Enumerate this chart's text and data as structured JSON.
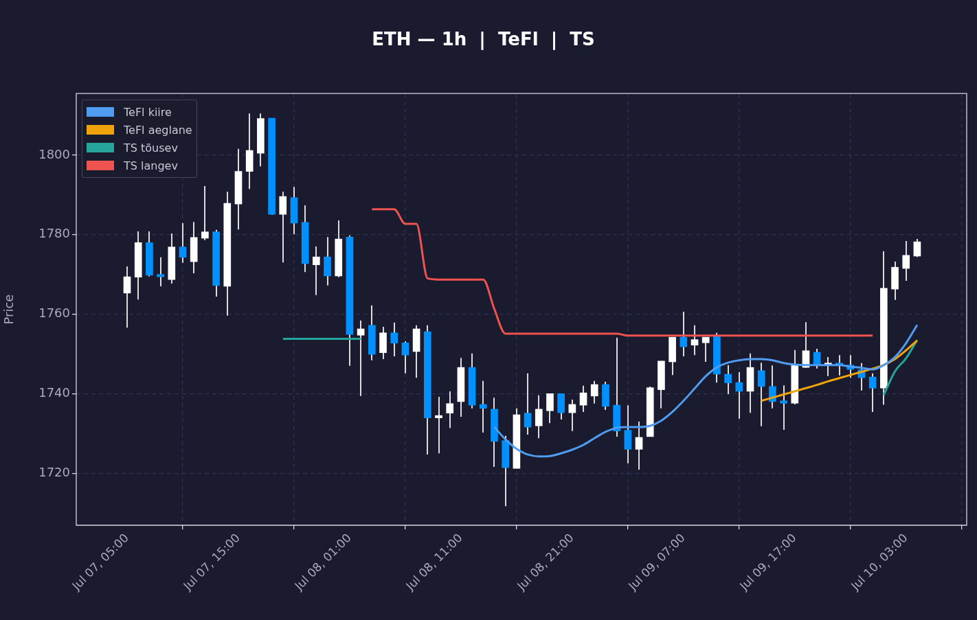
{
  "chart_data": {
    "type": "candlestick",
    "title": "ETH — 1h  |  TeFl  |  TS",
    "ylabel": "Price",
    "categories": [
      "Jul 07, 05:00",
      null,
      null,
      null,
      null,
      null,
      null,
      null,
      null,
      null,
      "Jul 07, 15:00",
      null,
      null,
      null,
      null,
      null,
      null,
      null,
      null,
      null,
      "Jul 08, 01:00",
      null,
      null,
      null,
      null,
      null,
      null,
      null,
      null,
      null,
      "Jul 08, 11:00",
      null,
      null,
      null,
      null,
      null,
      null,
      null,
      null,
      null,
      "Jul 08, 21:00",
      null,
      null,
      null,
      null,
      null,
      null,
      null,
      null,
      null,
      "Jul 09, 07:00",
      null,
      null,
      null,
      null,
      null,
      null,
      null,
      null,
      null,
      "Jul 09, 17:00",
      null,
      null,
      null,
      null,
      null,
      null,
      null,
      null,
      null,
      "Jul 10, 03:00",
      null
    ],
    "ylim": [
      1706.9,
      1815.5
    ],
    "yticks": [
      1720,
      1740,
      1760,
      1780,
      1800
    ],
    "grid": true,
    "legend": "top left",
    "series": [
      {
        "color": "#dcdcdc",
        "ohlc": [
          [
            1765.3,
            1772,
            1756.6,
            1769.4
          ],
          [
            1769.3,
            1780.8,
            1763.7,
            1778
          ],
          [
            1778,
            1780.8,
            1769.5,
            1769.8
          ],
          [
            1770,
            1774.3,
            1767,
            1769.4
          ],
          [
            1768.7,
            1780.3,
            1767.7,
            1776.9
          ],
          [
            1776.9,
            1782.9,
            1772.9,
            1774.3
          ],
          [
            1773.2,
            1783.2,
            1770.3,
            1779.3
          ],
          [
            1779.1,
            1792.2,
            1778.6,
            1780.7
          ],
          [
            1780.7,
            1781.2,
            1764.4,
            1767.2
          ],
          [
            1767,
            1790.8,
            1759.6,
            1787.9
          ],
          [
            1787.7,
            1801.6,
            1781.3,
            1795.9
          ],
          [
            1795.9,
            1810.5,
            1791.5,
            1801.2
          ],
          [
            1800.5,
            1810.5,
            1797.2,
            1809.2
          ],
          [
            1809.3,
            1809.3,
            1785,
            1785.1
          ],
          [
            1785.1,
            1790.8,
            1773,
            1789.6
          ],
          [
            1789.3,
            1792,
            1780.1,
            1782.9
          ],
          [
            1783.1,
            1787.4,
            1770.6,
            1772.7
          ],
          [
            1772.4,
            1777,
            1764.8,
            1774.4
          ],
          [
            1774.4,
            1779.4,
            1767.2,
            1769.6
          ],
          [
            1769.6,
            1783.6,
            1769.3,
            1778.9
          ],
          [
            1779.4,
            1779.8,
            1747,
            1754.9
          ],
          [
            1754.7,
            1758.4,
            1739.4,
            1756.3
          ],
          [
            1757.2,
            1762.2,
            1748.4,
            1749.9
          ],
          [
            1750.3,
            1756.8,
            1748.7,
            1755.3
          ],
          [
            1755.3,
            1757.9,
            1749.4,
            1752.7
          ],
          [
            1752.8,
            1753.2,
            1745.1,
            1749.7
          ],
          [
            1750.6,
            1757.2,
            1744,
            1756.3
          ],
          [
            1755.6,
            1757.2,
            1724.7,
            1733.9
          ],
          [
            1733.9,
            1739.2,
            1725,
            1734.5
          ],
          [
            1735.1,
            1740.6,
            1731.4,
            1737.5
          ],
          [
            1738,
            1749,
            1734.2,
            1746.6
          ],
          [
            1746.6,
            1750.1,
            1736.3,
            1737.1
          ],
          [
            1737.3,
            1743.2,
            1730.2,
            1736.3
          ],
          [
            1736.1,
            1739,
            1721.6,
            1728
          ],
          [
            1728.2,
            1729.4,
            1711.7,
            1721.4
          ],
          [
            1721.2,
            1736.3,
            1721.2,
            1734.7
          ],
          [
            1735.1,
            1745.1,
            1729.7,
            1731.6
          ],
          [
            1731.9,
            1739.6,
            1728.8,
            1736.1
          ],
          [
            1735.7,
            1740,
            1732.6,
            1740
          ],
          [
            1740,
            1740,
            1733.5,
            1735.2
          ],
          [
            1735.2,
            1738.5,
            1730.6,
            1737.3
          ],
          [
            1737.1,
            1742,
            1735.4,
            1740.2
          ],
          [
            1739.4,
            1743.2,
            1737.5,
            1742.3
          ],
          [
            1742.3,
            1743,
            1735.9,
            1736.8
          ],
          [
            1737.1,
            1754.1,
            1729.2,
            1730.6
          ],
          [
            1730.8,
            1737.1,
            1722.5,
            1726
          ],
          [
            1726,
            1733,
            1720.9,
            1729
          ],
          [
            1729.2,
            1741.8,
            1729.2,
            1741.5
          ],
          [
            1741,
            1748.2,
            1736.3,
            1748.2
          ],
          [
            1748,
            1754.2,
            1744.7,
            1754.2
          ],
          [
            1754.2,
            1760.6,
            1749.4,
            1751.8
          ],
          [
            1752.2,
            1757.2,
            1749.7,
            1753.6
          ],
          [
            1752.8,
            1754.2,
            1748,
            1754.2
          ],
          [
            1754.4,
            1755.3,
            1742.8,
            1744.9
          ],
          [
            1744.9,
            1747.2,
            1739.9,
            1742.7
          ],
          [
            1742.8,
            1745.4,
            1733.7,
            1740.6
          ],
          [
            1740.6,
            1750.1,
            1735.2,
            1746.6
          ],
          [
            1745.8,
            1747.8,
            1731.8,
            1741.8
          ],
          [
            1741.8,
            1747.1,
            1736.3,
            1738
          ],
          [
            1738.2,
            1742.1,
            1730.9,
            1737.6
          ],
          [
            1737.6,
            1751,
            1737.3,
            1747.3
          ],
          [
            1746.6,
            1758,
            1746.5,
            1750.8
          ],
          [
            1750.4,
            1751.3,
            1746.3,
            1747.3
          ],
          [
            1747.2,
            1749.2,
            1744.4,
            1747.7
          ],
          [
            1747.7,
            1749.7,
            1744.6,
            1747.1
          ],
          [
            1747.2,
            1749.7,
            1744,
            1746.1
          ],
          [
            1746,
            1747.7,
            1740.8,
            1744
          ],
          [
            1744.2,
            1745.1,
            1735.4,
            1741.4
          ],
          [
            1741.4,
            1775.8,
            1737.2,
            1766.5
          ],
          [
            1766.3,
            1773.2,
            1763.6,
            1771.8
          ],
          [
            1771.5,
            1778.4,
            1768.4,
            1774.8
          ],
          [
            1774.6,
            1778.9,
            1774.4,
            1778.2
          ]
        ],
        "colors": [
          "#ffffff",
          "#ffffff",
          "#0091ff",
          "#0091ff",
          "#ffffff",
          "#0091ff",
          "#ffffff",
          "#ffffff",
          "#0091ff",
          "#ffffff",
          "#ffffff",
          "#ffffff",
          "#ffffff",
          "#0091ff",
          "#ffffff",
          "#0091ff",
          "#0091ff",
          "#ffffff",
          "#0091ff",
          "#ffffff",
          "#0091ff",
          "#ffffff",
          "#0091ff",
          "#ffffff",
          "#0091ff",
          "#0091ff",
          "#ffffff",
          "#0091ff",
          "#ffffff",
          "#ffffff",
          "#ffffff",
          "#0091ff",
          "#0091ff",
          "#0091ff",
          "#0091ff",
          "#ffffff",
          "#0091ff",
          "#ffffff",
          "#ffffff",
          "#0091ff",
          "#ffffff",
          "#ffffff",
          "#ffffff",
          "#0091ff",
          "#0091ff",
          "#0091ff",
          "#ffffff",
          "#ffffff",
          "#ffffff",
          "#ffffff",
          "#0091ff",
          "#ffffff",
          "#ffffff",
          "#0091ff",
          "#0091ff",
          "#0091ff",
          "#ffffff",
          "#0091ff",
          "#0091ff",
          "#0091ff",
          "#ffffff",
          "#ffffff",
          "#0091ff",
          "#ffffff",
          "#0091ff",
          "#0091ff",
          "#0091ff",
          "#0091ff",
          "#ffffff",
          "#ffffff",
          "#ffffff",
          "#ffffff"
        ]
      },
      {
        "type": "line",
        "name": "TeFl kiire",
        "color": "#4f9cf0",
        "values": [
          null,
          null,
          null,
          null,
          null,
          null,
          null,
          null,
          null,
          null,
          null,
          null,
          null,
          null,
          null,
          null,
          null,
          null,
          null,
          null,
          null,
          null,
          null,
          null,
          null,
          null,
          null,
          null,
          null,
          null,
          null,
          null,
          null,
          1731.6,
          1728.5,
          1726.1,
          1724.7,
          1724.2,
          1724.3,
          1725,
          1725.9,
          1727.1,
          1728.8,
          1730.4,
          1731.4,
          1731.6,
          1731.6,
          1731.9,
          1733.2,
          1735.4,
          1738.2,
          1741.3,
          1744.4,
          1746.6,
          1747.8,
          1748.4,
          1748.7,
          1748.7,
          1748.4,
          1747.7,
          1747.3,
          1747.2,
          1747.2,
          1747.2,
          1747.2,
          1746.8,
          1746.5,
          1746.1,
          1747.2,
          1749.2,
          1752.7,
          1757.3
        ]
      },
      {
        "type": "line",
        "name": "TeFl aeglane",
        "color": "#f0a30a",
        "values": [
          null,
          null,
          null,
          null,
          null,
          null,
          null,
          null,
          null,
          null,
          null,
          null,
          null,
          null,
          null,
          null,
          null,
          null,
          null,
          null,
          null,
          null,
          null,
          null,
          null,
          null,
          null,
          null,
          null,
          null,
          null,
          null,
          null,
          null,
          null,
          null,
          null,
          null,
          null,
          null,
          null,
          null,
          null,
          null,
          null,
          null,
          null,
          null,
          null,
          null,
          null,
          null,
          null,
          null,
          null,
          null,
          null,
          1738.2,
          1739,
          1739.8,
          1740.6,
          1741.4,
          1742.2,
          1743.1,
          1743.9,
          1744.7,
          1745.5,
          1746.3,
          1747.2,
          1748.7,
          1750.9,
          1753.4
        ]
      },
      {
        "type": "line",
        "name": "TS tõusev",
        "color": "#26a69a",
        "values": [
          null,
          null,
          null,
          null,
          null,
          null,
          null,
          null,
          null,
          null,
          null,
          null,
          null,
          null,
          1753.8,
          1753.8,
          1753.8,
          1753.8,
          1753.8,
          1753.8,
          1753.8,
          1753.8,
          null,
          null,
          null,
          null,
          null,
          null,
          null,
          null,
          null,
          null,
          null,
          null,
          null,
          null,
          null,
          null,
          null,
          null,
          null,
          null,
          null,
          null,
          null,
          null,
          null,
          null,
          null,
          null,
          null,
          null,
          null,
          null,
          null,
          null,
          null,
          null,
          null,
          null,
          null,
          null,
          null,
          null,
          null,
          null,
          null,
          null,
          1739.7,
          1745.6,
          1748.9,
          1753.5
        ]
      },
      {
        "type": "line",
        "name": "TS langev",
        "color": "#ef5350",
        "values": [
          null,
          null,
          null,
          null,
          null,
          null,
          null,
          null,
          null,
          null,
          null,
          null,
          null,
          null,
          null,
          null,
          null,
          null,
          null,
          null,
          null,
          null,
          1786.4,
          1786.4,
          1786.4,
          1782.7,
          1782.7,
          1769,
          1768.7,
          1768.7,
          1768.7,
          1768.7,
          1768.7,
          1761.3,
          1755.1,
          1755.1,
          1755.1,
          1755.1,
          1755.1,
          1755.1,
          1755.1,
          1755.1,
          1755.1,
          1755.1,
          1755.1,
          1754.6,
          1754.6,
          1754.6,
          1754.6,
          1754.6,
          1754.6,
          1754.6,
          1754.6,
          1754.6,
          1754.6,
          1754.6,
          1754.6,
          1754.6,
          1754.6,
          1754.6,
          1754.6,
          1754.6,
          1754.6,
          1754.6,
          1754.6,
          1754.6,
          1754.6,
          1754.6,
          null,
          null,
          null,
          null
        ]
      }
    ]
  }
}
